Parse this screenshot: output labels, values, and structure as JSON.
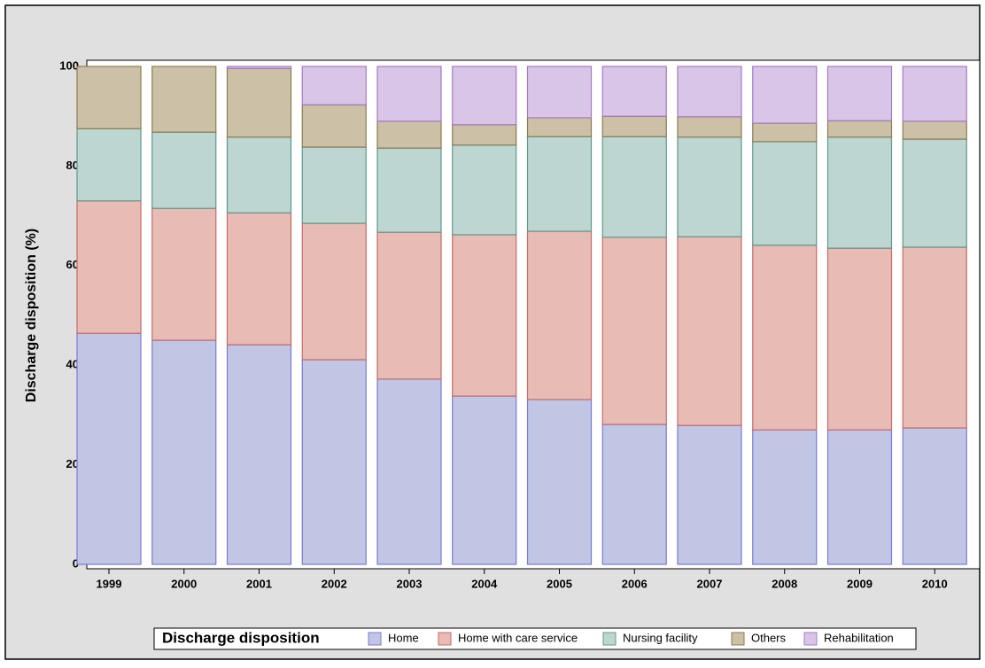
{
  "chart_data": {
    "type": "stacked_bar",
    "y_label": "Discharge disposition (%)",
    "legend_title": "Discharge disposition",
    "categories": [
      "1999",
      "2000",
      "2001",
      "2002",
      "2003",
      "2004",
      "2005",
      "2006",
      "2007",
      "2008",
      "2009",
      "2010"
    ],
    "series": [
      {
        "name": "Home",
        "color": "#c0c6e4",
        "stroke": "#7a7ad8",
        "values": [
          46.4,
          45.0,
          44.1,
          41.1,
          37.2,
          33.8,
          33.1,
          28.1,
          27.9,
          27.0,
          27.0,
          27.4
        ]
      },
      {
        "name": "Home with care service",
        "color": "#e6bcb4",
        "stroke": "#c86a6a",
        "values": [
          26.6,
          26.5,
          26.5,
          27.4,
          29.5,
          32.4,
          33.8,
          37.6,
          37.9,
          37.1,
          36.5,
          36.3
        ]
      },
      {
        "name": "Nursing facility",
        "color": "#bdd6d1",
        "stroke": "#5e9a8c",
        "values": [
          14.5,
          15.3,
          15.2,
          15.3,
          16.9,
          18.0,
          19.0,
          20.2,
          20.0,
          20.8,
          22.3,
          21.7
        ]
      },
      {
        "name": "Others",
        "color": "#ccc0a6",
        "stroke": "#8c7c52",
        "values": [
          12.5,
          13.2,
          13.8,
          8.5,
          5.4,
          4.1,
          3.8,
          4.1,
          4.1,
          3.7,
          3.3,
          3.6
        ]
      },
      {
        "name": "Rehabilitation",
        "color": "#d9c6e7",
        "stroke": "#a678c6",
        "values": [
          0,
          0,
          0.4,
          7.7,
          11.0,
          11.7,
          10.3,
          10.0,
          10.1,
          11.4,
          10.9,
          11.0
        ]
      }
    ],
    "ylim": [
      0,
      100
    ],
    "yticks": [
      0,
      20,
      40,
      60,
      80,
      100
    ]
  }
}
